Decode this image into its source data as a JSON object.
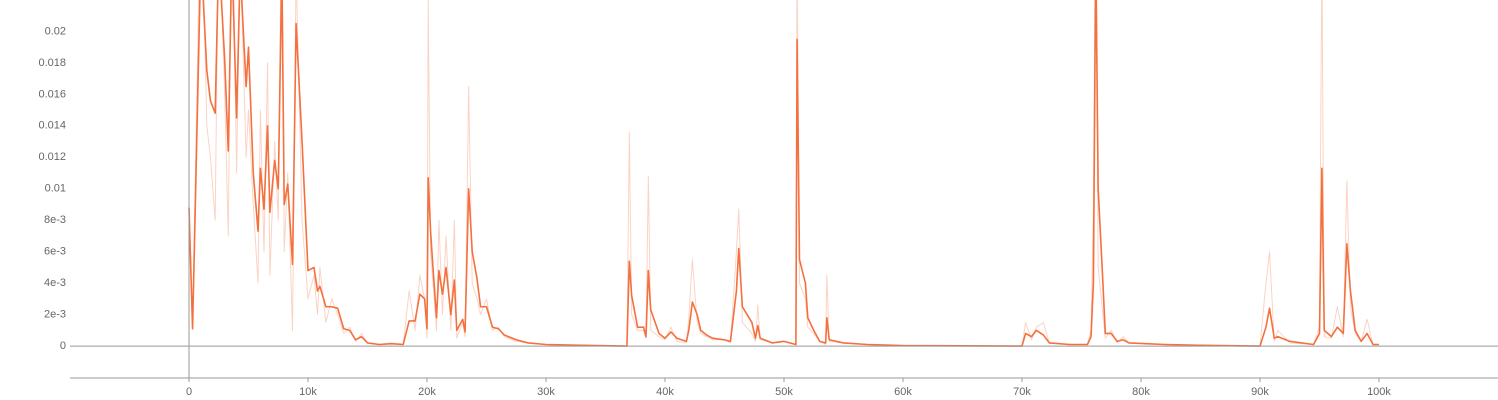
{
  "chart_data": {
    "type": "line",
    "x": [
      0,
      300,
      1000,
      1500,
      1800,
      2200,
      2500,
      3000,
      3300,
      3600,
      4000,
      4300,
      4800,
      5000,
      5400,
      5800,
      6000,
      6300,
      6600,
      6800,
      7200,
      7500,
      7800,
      8000,
      8300,
      8700,
      9000,
      9500,
      10000,
      10500,
      10800,
      11000,
      11500,
      12000,
      12500,
      13000,
      13500,
      14000,
      14500,
      15000,
      16000,
      17000,
      18000,
      18500,
      19000,
      19400,
      19800,
      20000,
      20100,
      20300,
      20500,
      20800,
      21000,
      21300,
      21600,
      22000,
      22300,
      22500,
      23000,
      23200,
      23500,
      23800,
      24200,
      24500,
      25000,
      25500,
      26000,
      26500,
      27500,
      28500,
      30000,
      33000,
      36800,
      37000,
      37200,
      37700,
      38200,
      38400,
      38600,
      38800,
      39500,
      40000,
      40500,
      41000,
      41800,
      42000,
      42300,
      42700,
      43000,
      43500,
      44000,
      45000,
      45500,
      46000,
      46200,
      46500,
      47300,
      47600,
      47800,
      48000,
      49000,
      50000,
      51000,
      51100,
      51300,
      51800,
      52000,
      52500,
      53000,
      53500,
      53600,
      53800,
      55000,
      57000,
      60000,
      70000,
      70300,
      70800,
      71200,
      71800,
      72300,
      74000,
      75500,
      75800,
      76000,
      76200,
      76400,
      76800,
      77000,
      77500,
      78000,
      78500,
      79000,
      82000,
      85000,
      90000,
      90500,
      90800,
      91200,
      91500,
      92500,
      94500,
      95000,
      95200,
      95400,
      96000,
      96500,
      97000,
      97300,
      97600,
      98000,
      98500,
      99000,
      99500,
      100000
    ],
    "series": [
      {
        "color": "#fbd3c5",
        "values": [
          0.0088,
          0.0011,
          0.03,
          0.014,
          0.012,
          0.008,
          0.028,
          0.016,
          0.007,
          0.03,
          0.011,
          0.025,
          0.012,
          0.015,
          0.009,
          0.004,
          0.015,
          0.006,
          0.018,
          0.0045,
          0.013,
          0.008,
          0.03,
          0.006,
          0.011,
          0.001,
          0.024,
          0.008,
          0.003,
          0.0045,
          0.002,
          0.005,
          0.0015,
          0.003,
          0.002,
          0.0008,
          0.0012,
          0.0003,
          0.0008,
          0.0002,
          0.0001,
          0.0002,
          0.0001,
          0.0035,
          0.001,
          0.0045,
          0.003,
          0.0005,
          0.022,
          0.006,
          0.004,
          0.001,
          0.008,
          0.002,
          0.007,
          0.001,
          0.008,
          0.0005,
          0.0015,
          0.0006,
          0.0165,
          0.004,
          0.003,
          0.002,
          0.003,
          0.001,
          0.0012,
          0.0006,
          0.0003,
          0.0002,
          0.0001,
          5e-05,
          0,
          0.0136,
          0.002,
          0.001,
          0.001,
          0.0005,
          0.0108,
          0.001,
          0.0006,
          0.0004,
          0.0012,
          0.0003,
          0.0002,
          0.0018,
          0.0055,
          0.0015,
          0.0008,
          0.0006,
          0.0004,
          0.0004,
          0.0002,
          0.006,
          0.0087,
          0.0015,
          0.0008,
          0.0003,
          0.0026,
          0.0004,
          0.0002,
          0.0003,
          0.0001,
          0.025,
          0.004,
          0.003,
          0.0012,
          0.0008,
          0.0003,
          0.0001,
          0.0045,
          0.0003,
          0.0002,
          0.0001,
          3e-05,
          0,
          0.0015,
          0.0004,
          0.0012,
          0.0015,
          0.0002,
          0.0001,
          0.0001,
          0.001,
          0.009,
          0.03,
          0.005,
          0.002,
          0.0005,
          0.001,
          0.0002,
          0.0006,
          0.0002,
          0.0001,
          5e-05,
          0,
          0.004,
          0.006,
          0.0003,
          0.001,
          0.0002,
          0.0001,
          0.0012,
          0.025,
          0.0006,
          0.0005,
          0.0025,
          0.0006,
          0.0105,
          0.0025,
          0.0008,
          0.0003,
          0.0017,
          0.0001,
          0.0001
        ]
      },
      {
        "color": "#f4703e",
        "values": [
          0.0088,
          0.0011,
          0.025,
          0.0175,
          0.0156,
          0.0148,
          0.025,
          0.0182,
          0.0124,
          0.025,
          0.0145,
          0.024,
          0.0165,
          0.019,
          0.011,
          0.0073,
          0.0113,
          0.0087,
          0.014,
          0.0085,
          0.0118,
          0.01,
          0.024,
          0.009,
          0.0103,
          0.0052,
          0.0205,
          0.013,
          0.0048,
          0.005,
          0.0035,
          0.0038,
          0.0025,
          0.0025,
          0.0024,
          0.0011,
          0.001,
          0.0004,
          0.0006,
          0.0002,
          0.0001,
          0.00015,
          0.0001,
          0.0016,
          0.0016,
          0.0033,
          0.003,
          0.0011,
          0.0107,
          0.0073,
          0.005,
          0.0018,
          0.0048,
          0.0033,
          0.005,
          0.002,
          0.0042,
          0.001,
          0.0017,
          0.0009,
          0.01,
          0.006,
          0.0043,
          0.0025,
          0.0025,
          0.0012,
          0.0011,
          0.0007,
          0.0004,
          0.0002,
          0.0001,
          5e-05,
          0,
          0.0054,
          0.0032,
          0.0012,
          0.0012,
          0.0006,
          0.0048,
          0.0023,
          0.0008,
          0.0005,
          0.0009,
          0.0005,
          0.0003,
          0.001,
          0.0028,
          0.002,
          0.001,
          0.0007,
          0.0005,
          0.0004,
          0.0003,
          0.0035,
          0.0062,
          0.0025,
          0.0015,
          0.0005,
          0.0013,
          0.0005,
          0.0002,
          0.0003,
          0.0001,
          0.0195,
          0.0055,
          0.004,
          0.0018,
          0.001,
          0.0003,
          0.0002,
          0.0018,
          0.0004,
          0.0002,
          0.0001,
          3e-05,
          0,
          0.0008,
          0.0006,
          0.001,
          0.0007,
          0.0002,
          0.0001,
          0.0001,
          0.0006,
          0.004,
          0.025,
          0.01,
          0.004,
          0.0008,
          0.0008,
          0.0003,
          0.0004,
          0.0002,
          0.0001,
          5e-05,
          0,
          0.0012,
          0.0024,
          0.0005,
          0.0006,
          0.0003,
          0.0001,
          0.0008,
          0.0113,
          0.001,
          0.0006,
          0.0012,
          0.0008,
          0.0065,
          0.0035,
          0.001,
          0.0003,
          0.0008,
          0.0001,
          0.0001
        ]
      }
    ],
    "xlim": [
      -10000,
      110000
    ],
    "xticks": [
      0,
      {
        "value": 10000,
        "label": "10k"
      },
      {
        "value": 20000,
        "label": "20k"
      },
      {
        "value": 30000,
        "label": "30k"
      },
      {
        "value": 40000,
        "label": "40k"
      },
      {
        "value": 50000,
        "label": "50k"
      },
      {
        "value": 60000,
        "label": "60k"
      },
      {
        "value": 70000,
        "label": "70k"
      },
      {
        "value": 80000,
        "label": "80k"
      },
      {
        "value": 90000,
        "label": "90k"
      },
      {
        "value": 100000,
        "label": "100k"
      }
    ],
    "ylim": [
      -0.00203,
      0.022
    ],
    "yticks": [
      0,
      {
        "value": 0.002,
        "label": "2e-3"
      },
      {
        "value": 0.004,
        "label": "4e-3"
      },
      {
        "value": 0.006,
        "label": "6e-3"
      },
      {
        "value": 0.008,
        "label": "8e-3"
      },
      0.01,
      0.012,
      0.014,
      0.016,
      0.018,
      0.02
    ]
  }
}
